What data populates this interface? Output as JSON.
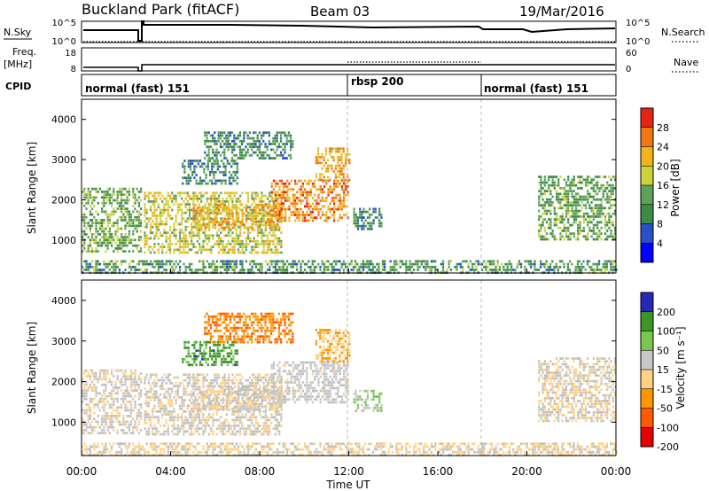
{
  "header": {
    "title": "Buckland Park (fitACF)",
    "beam": "Beam 03",
    "date": "19/Mar/2016"
  },
  "status_panels": {
    "nsky_label": "N.Sky",
    "nsky_ticks": [
      "10^5",
      "10^0"
    ],
    "nsearch_label": "N.Search",
    "nsearch_ticks": [
      "10^5",
      "10^0"
    ],
    "freq_label": "Freq.",
    "freq_unit": "[MHz]",
    "freq_ticks": [
      "18",
      "8"
    ],
    "nave_label": "Nave",
    "nave_ticks": [
      "60",
      "0"
    ],
    "cpid_label": "CPID",
    "cpid_segments": [
      {
        "label": "normal (fast) 151",
        "start_hour": 0,
        "end_hour": 12
      },
      {
        "label": "rbsp 200",
        "start_hour": 12,
        "end_hour": 18
      },
      {
        "label": "normal (fast) 151",
        "start_hour": 18,
        "end_hour": 24
      }
    ]
  },
  "power_panel": {
    "ylabel": "Slant Range [km]",
    "yticks": [
      "4000",
      "3000",
      "2000",
      "1000"
    ],
    "colorbar_label": "Power [dB]",
    "colorbar_ticks": [
      "28",
      "24",
      "20",
      "16",
      "12",
      "8",
      "4"
    ]
  },
  "velocity_panel": {
    "ylabel": "Slant Range [km]",
    "yticks": [
      "4000",
      "3000",
      "2000",
      "1000"
    ],
    "colorbar_label": "Velocity [m s⁻¹]",
    "colorbar_ticks": [
      "200",
      "100",
      "50",
      "15",
      "-15",
      "-50",
      "-100",
      "-200"
    ]
  },
  "xaxis": {
    "label": "Time UT",
    "ticks": [
      "00:00",
      "04:00",
      "08:00",
      "12:00",
      "16:00",
      "20:00",
      "00:00"
    ]
  },
  "colors": {
    "power_scale": [
      "#0000ff",
      "#2850c8",
      "#3c8c46",
      "#5fa05a",
      "#cdd23c",
      "#f0b41e",
      "#f07814",
      "#e62314"
    ],
    "velocity_scale": [
      "#e60000",
      "#ff5a00",
      "#ff9600",
      "#ffd282",
      "#c8c8c8",
      "#78c850",
      "#3c9628",
      "#2828b4"
    ],
    "ground_scatter": "#bebebe"
  },
  "chart_data": {
    "type": "heatmap",
    "x_range_hours": [
      0,
      24
    ],
    "y_range_km": [
      180,
      4500
    ],
    "power_scale_db": [
      0,
      32
    ],
    "velocity_scale_ms": [
      -250,
      250
    ],
    "scatter_regions": [
      {
        "t": [
          0.0,
          2.7
        ],
        "r": [
          700,
          2300
        ],
        "power_db": 14,
        "velocity_ms": 0
      },
      {
        "t": [
          2.8,
          9.0
        ],
        "r": [
          700,
          2200
        ],
        "power_db": 18,
        "velocity_ms": 0
      },
      {
        "t": [
          5.0,
          9.0
        ],
        "r": [
          1300,
          1900
        ],
        "power_db": 22,
        "velocity_ms": -5
      },
      {
        "t": [
          8.5,
          12.0
        ],
        "r": [
          1500,
          2500
        ],
        "power_db": 25,
        "velocity_ms": 20
      },
      {
        "t": [
          10.5,
          12.0
        ],
        "r": [
          2500,
          3300
        ],
        "power_db": 23,
        "velocity_ms": -60
      },
      {
        "t": [
          5.5,
          9.5
        ],
        "r": [
          3000,
          3700
        ],
        "power_db": 11,
        "velocity_ms": -120
      },
      {
        "t": [
          4.5,
          7.0
        ],
        "r": [
          2400,
          3000
        ],
        "power_db": 10,
        "velocity_ms": 150
      },
      {
        "t": [
          12.2,
          13.5
        ],
        "r": [
          1300,
          1800
        ],
        "power_db": 10,
        "velocity_ms": 60
      },
      {
        "t": [
          20.5,
          24.0
        ],
        "r": [
          1000,
          2600
        ],
        "power_db": 13,
        "velocity_ms": -10
      },
      {
        "t": [
          0.0,
          24.0
        ],
        "r": [
          180,
          500
        ],
        "power_db": 12,
        "velocity_ms": -20
      }
    ]
  }
}
